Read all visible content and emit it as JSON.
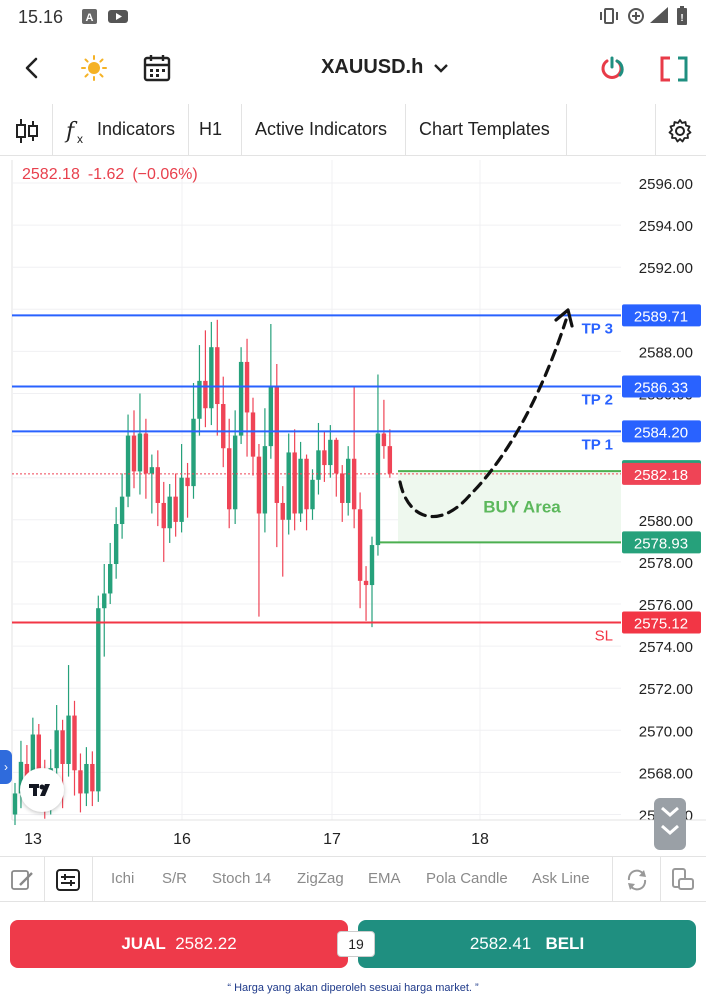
{
  "status_bar": {
    "time": "15.16",
    "left_icons": [
      "a-notification-icon",
      "youtube-icon"
    ],
    "right_icons": [
      "vibrate-icon",
      "data-saver-icon",
      "wifi-icon",
      "battery-icon"
    ]
  },
  "top_bar": {
    "symbol": "XAUUSD.h",
    "icons": [
      "back-arrow-icon",
      "theme-sun-icon",
      "calendar-icon",
      "power-icon",
      "fullscreen-icon"
    ]
  },
  "toolbar": {
    "indicators_label": "Indicators",
    "timeframe": "H1",
    "active_indicators_label": "Active Indicators",
    "chart_templates_label": "Chart Templates"
  },
  "chart": {
    "last_price": "2582.18",
    "change": "-1.62",
    "change_pct": "(−0.06%)",
    "colors": {
      "up": "#26a17b",
      "down": "#ef4456",
      "tp_line": "#2962ff",
      "sl_line": "#f23645",
      "buy_line": "#4caf50"
    }
  },
  "chart_data": {
    "type": "candlestick",
    "y_axis_ticks": [
      "2596.00",
      "2594.00",
      "2592.00",
      "2590.00",
      "2588.00",
      "2586.00",
      "2584.00",
      "2582.00",
      "2580.00",
      "2578.00",
      "2576.00",
      "2574.00",
      "2572.00",
      "2570.00",
      "2568.00",
      "2566.00"
    ],
    "x_axis_ticks": [
      "13",
      "16",
      "17",
      "18"
    ],
    "ylim": [
      2565.5,
      2597
    ],
    "levels": [
      {
        "label": "TP 3",
        "price": "2589.71",
        "kind": "tp"
      },
      {
        "label": "TP 2",
        "price": "2586.33",
        "kind": "tp"
      },
      {
        "label": "TP 1",
        "price": "2584.20",
        "kind": "tp"
      },
      {
        "label": "",
        "price": "2582.31",
        "kind": "buy-top"
      },
      {
        "label": "",
        "price": "2582.18",
        "kind": "current"
      },
      {
        "label": "BUY Area",
        "price": "2578.93",
        "kind": "buy-bottom"
      },
      {
        "label": "SL",
        "price": "2575.12",
        "kind": "sl"
      }
    ],
    "candles": [
      [
        2566.0,
        2567.0,
        2565.5,
        2567.5
      ],
      [
        2567.0,
        2568.5,
        2566.3,
        2569.5
      ],
      [
        2568.4,
        2567.2,
        2566.6,
        2569.3
      ],
      [
        2567.2,
        2569.8,
        2567.0,
        2570.6
      ],
      [
        2569.8,
        2568.0,
        2567.4,
        2570.3
      ],
      [
        2568.0,
        2566.6,
        2565.8,
        2568.6
      ],
      [
        2566.6,
        2568.2,
        2566.0,
        2569.1
      ],
      [
        2568.2,
        2570.0,
        2567.3,
        2571.2
      ],
      [
        2570.0,
        2568.4,
        2566.3,
        2570.5
      ],
      [
        2568.4,
        2570.7,
        2567.8,
        2573.1
      ],
      [
        2570.7,
        2568.1,
        2566.9,
        2571.4
      ],
      [
        2568.1,
        2567.0,
        2566.1,
        2568.9
      ],
      [
        2567.0,
        2568.4,
        2566.4,
        2569.2
      ],
      [
        2568.4,
        2567.1,
        2566.4,
        2569.0
      ],
      [
        2567.1,
        2575.8,
        2566.6,
        2576.4
      ],
      [
        2575.8,
        2576.5,
        2573.5,
        2577.9
      ],
      [
        2576.5,
        2577.9,
        2576.0,
        2578.9
      ],
      [
        2577.9,
        2579.8,
        2577.2,
        2580.6
      ],
      [
        2579.8,
        2581.1,
        2579.1,
        2582.2
      ],
      [
        2581.1,
        2584.0,
        2580.6,
        2585.0
      ],
      [
        2584.0,
        2582.3,
        2581.5,
        2585.2
      ],
      [
        2582.3,
        2584.1,
        2581.2,
        2586.0
      ],
      [
        2584.1,
        2582.2,
        2581.0,
        2584.8
      ],
      [
        2582.2,
        2582.5,
        2580.3,
        2583.1
      ],
      [
        2582.5,
        2580.8,
        2579.7,
        2583.3
      ],
      [
        2580.8,
        2579.6,
        2578.0,
        2581.8
      ],
      [
        2579.6,
        2581.1,
        2578.9,
        2581.7
      ],
      [
        2581.1,
        2579.9,
        2579.2,
        2582.2
      ],
      [
        2579.9,
        2582.0,
        2579.4,
        2583.6
      ],
      [
        2582.0,
        2581.6,
        2580.1,
        2582.7
      ],
      [
        2581.6,
        2584.8,
        2581.0,
        2586.5
      ],
      [
        2584.8,
        2586.6,
        2584.0,
        2588.3
      ],
      [
        2586.6,
        2585.3,
        2584.4,
        2589.0
      ],
      [
        2585.3,
        2588.2,
        2584.5,
        2589.4
      ],
      [
        2588.2,
        2585.5,
        2584.0,
        2589.5
      ],
      [
        2585.5,
        2583.4,
        2582.5,
        2586.8
      ],
      [
        2583.4,
        2580.5,
        2579.6,
        2584.8
      ],
      [
        2580.5,
        2584.0,
        2579.8,
        2585.2
      ],
      [
        2584.0,
        2587.5,
        2583.6,
        2588.2
      ],
      [
        2587.5,
        2585.1,
        2583.0,
        2588.6
      ],
      [
        2585.1,
        2583.0,
        2582.1,
        2585.8
      ],
      [
        2583.0,
        2580.3,
        2575.4,
        2583.6
      ],
      [
        2580.3,
        2583.5,
        2579.4,
        2585.3
      ],
      [
        2583.5,
        2586.3,
        2582.9,
        2589.3
      ],
      [
        2586.3,
        2580.8,
        2578.7,
        2587.4
      ],
      [
        2580.8,
        2580.0,
        2577.3,
        2581.6
      ],
      [
        2580.0,
        2583.2,
        2579.3,
        2584.1
      ],
      [
        2583.2,
        2580.3,
        2579.5,
        2584.3
      ],
      [
        2580.3,
        2582.9,
        2579.9,
        2583.7
      ],
      [
        2582.9,
        2580.5,
        2579.5,
        2583.1
      ],
      [
        2580.5,
        2581.9,
        2580.0,
        2582.4
      ],
      [
        2581.9,
        2583.3,
        2581.2,
        2584.6
      ],
      [
        2583.3,
        2582.6,
        2581.8,
        2584.2
      ],
      [
        2582.6,
        2583.8,
        2582.0,
        2584.5
      ],
      [
        2583.8,
        2582.2,
        2581.1,
        2583.9
      ],
      [
        2582.2,
        2580.8,
        2579.9,
        2582.6
      ],
      [
        2580.8,
        2582.9,
        2580.2,
        2583.5
      ],
      [
        2582.9,
        2580.5,
        2579.6,
        2586.3
      ],
      [
        2580.5,
        2577.1,
        2575.8,
        2581.3
      ],
      [
        2577.1,
        2576.9,
        2575.2,
        2577.8
      ],
      [
        2576.9,
        2578.8,
        2574.9,
        2579.2
      ],
      [
        2578.8,
        2584.1,
        2578.3,
        2586.9
      ],
      [
        2584.1,
        2583.5,
        2582.9,
        2585.7
      ],
      [
        2583.5,
        2582.2,
        2582.0,
        2584.3
      ]
    ],
    "annotation": "BUY Area"
  },
  "indicator_strip": {
    "items": [
      "Ichi",
      "S/R",
      "Stoch 14",
      "ZigZag",
      "EMA",
      "Pola Candle",
      "Ask Line"
    ]
  },
  "trade": {
    "sell_label": "JUAL",
    "sell_price": "2582.22",
    "spread": "19",
    "buy_price": "2582.41",
    "buy_label": "BELI",
    "disclaimer": "“ Harga yang akan diperoleh sesuai harga market. ”"
  }
}
